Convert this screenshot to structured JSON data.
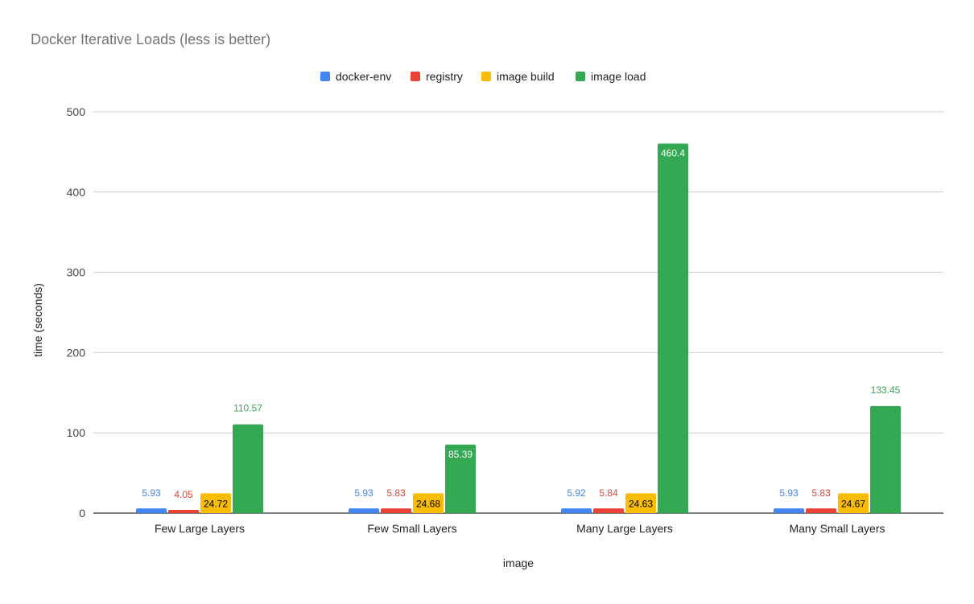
{
  "chart_data": {
    "type": "bar",
    "title": "Docker Iterative Loads (less is better)",
    "xlabel": "image",
    "ylabel": "time (seconds)",
    "ylim": [
      0,
      500
    ],
    "yticks": [
      0,
      100,
      200,
      300,
      400,
      500
    ],
    "grid": true,
    "legend_position": "top",
    "categories": [
      "Few Large Layers",
      "Few Small Layers",
      "Many Large Layers",
      "Many Small Layers"
    ],
    "series": [
      {
        "name": "docker-env",
        "color": "#4285f4",
        "values": [
          5.93,
          5.93,
          5.92,
          5.93
        ]
      },
      {
        "name": "registry",
        "color": "#ea4335",
        "values": [
          4.05,
          5.83,
          5.84,
          5.83
        ]
      },
      {
        "name": "image build",
        "color": "#fbbc04",
        "values": [
          24.72,
          24.68,
          24.63,
          24.67
        ]
      },
      {
        "name": "image load",
        "color": "#34a853",
        "values": [
          110.57,
          85.39,
          460.4,
          133.45
        ]
      }
    ]
  }
}
